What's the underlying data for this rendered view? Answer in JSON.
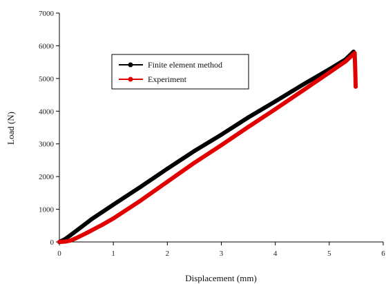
{
  "chart_data": {
    "type": "line",
    "title": "",
    "xlabel": "Displacement (mm)",
    "ylabel": "Load (N)",
    "xlim": [
      0,
      6
    ],
    "ylim": [
      0,
      7000
    ],
    "x_ticks": [
      "0",
      "1",
      "2",
      "3",
      "4",
      "5",
      "6"
    ],
    "y_ticks": [
      "0",
      "1000",
      "2000",
      "3000",
      "4000",
      "5000",
      "6000",
      "7000"
    ],
    "grid": false,
    "legend_position": "upper-left-center",
    "series": [
      {
        "name": "Finite element method",
        "color": "#000000",
        "x": [
          0,
          0.1,
          0.2,
          0.4,
          0.6,
          0.8,
          1.0,
          1.5,
          2.0,
          2.5,
          3.0,
          3.5,
          4.0,
          4.5,
          5.0,
          5.3,
          5.45
        ],
        "y": [
          0,
          80,
          200,
          450,
          700,
          920,
          1140,
          1680,
          2240,
          2780,
          3280,
          3810,
          4300,
          4800,
          5280,
          5580,
          5820
        ]
      },
      {
        "name": "Experiment",
        "color": "#e00000",
        "x": [
          0,
          0.1,
          0.2,
          0.3,
          0.5,
          0.8,
          1.0,
          1.5,
          2.0,
          2.5,
          3.0,
          3.5,
          4.0,
          4.5,
          5.0,
          5.3,
          5.47,
          5.48,
          5.49
        ],
        "y": [
          0,
          10,
          40,
          110,
          270,
          530,
          720,
          1260,
          1840,
          2420,
          2960,
          3520,
          4060,
          4620,
          5180,
          5520,
          5780,
          5300,
          4750
        ]
      }
    ]
  }
}
